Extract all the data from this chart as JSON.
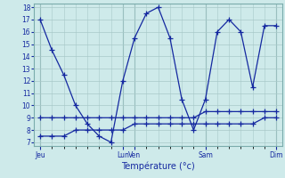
{
  "xlabel": "Température (°c)",
  "ylim": [
    7,
    18
  ],
  "yticks": [
    7,
    8,
    9,
    10,
    11,
    12,
    13,
    14,
    15,
    16,
    17,
    18
  ],
  "bg_color": "#ceeaea",
  "grid_color": "#a8c8c8",
  "line_color": "#1428a0",
  "day_labels": [
    "Jeu",
    "Lun",
    "Ven",
    "Sam",
    "Dim"
  ],
  "day_positions": [
    0,
    7,
    8,
    14,
    20
  ],
  "n_points": 21,
  "line1_y": [
    17,
    14.5,
    12.5,
    10,
    8.5,
    7.5,
    7,
    12,
    15.5,
    17.5,
    18,
    15.5,
    10.5,
    8.0,
    10.5,
    16,
    17,
    16,
    11.5,
    16.5,
    16.5
  ],
  "line2_y": [
    9,
    9,
    9,
    9,
    9,
    9,
    9,
    9,
    9,
    9,
    9,
    9,
    9,
    9,
    9.5,
    9.5,
    9.5,
    9.5,
    9.5,
    9.5,
    9.5
  ],
  "line3_y": [
    7.5,
    7.5,
    7.5,
    8.0,
    8.0,
    8.0,
    8.0,
    8.0,
    8.5,
    8.5,
    8.5,
    8.5,
    8.5,
    8.5,
    8.5,
    8.5,
    8.5,
    8.5,
    8.5,
    9.0,
    9.0
  ]
}
